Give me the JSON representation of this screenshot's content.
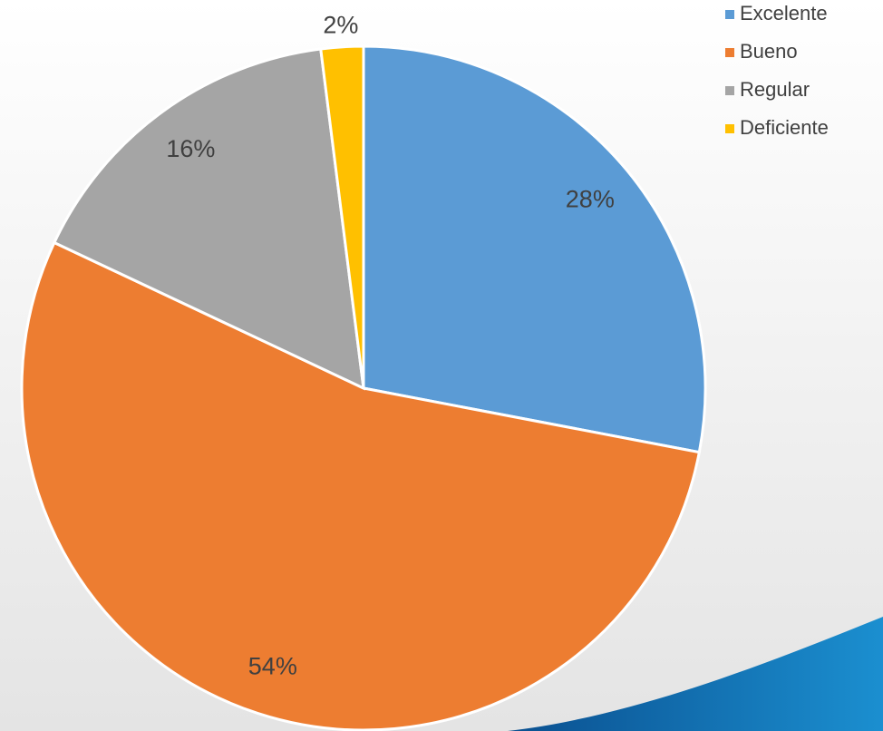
{
  "chart_data": {
    "type": "pie",
    "categories": [
      "Excelente",
      "Bueno",
      "Regular",
      "Deficiente"
    ],
    "values": [
      28,
      54,
      16,
      2
    ],
    "value_labels": [
      "28%",
      "54%",
      "16%",
      "2%"
    ],
    "colors": [
      "#5b9bd5",
      "#ed7d31",
      "#a5a5a5",
      "#ffc000"
    ],
    "legend": "top-right"
  }
}
